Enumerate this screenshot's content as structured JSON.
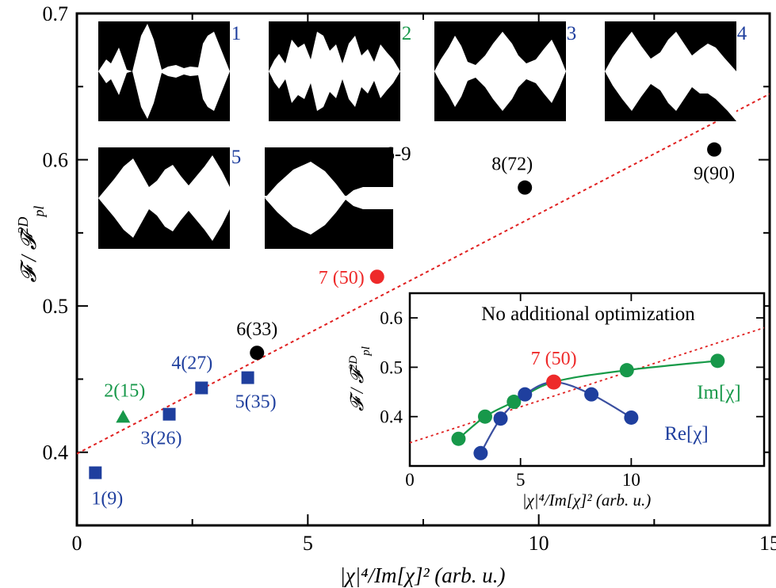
{
  "colors": {
    "blue": "#1f3f9e",
    "green": "#17984a",
    "red": "#ee2a2a",
    "black": "#000000",
    "fit": "#e02020",
    "inset_blue_line": "#3a4fa0",
    "inset_green_line": "#179a48"
  },
  "axes": {
    "xlabel": "|χ|⁴/Im[χ]² (arb. u.)",
    "ylabel": "F / F_pl^2D",
    "xticks": [
      "0",
      "5",
      "10",
      "15"
    ],
    "yticks": [
      "0.4",
      "0.5",
      "0.6",
      "0.7"
    ]
  },
  "chart_data": [
    {
      "type": "scatter",
      "xlabel": "|χ|⁴/Im[χ]² (arb. u.)",
      "ylabel": "F / F_pl^2D",
      "xlim": [
        0,
        15
      ],
      "ylim": [
        0.35,
        0.7
      ],
      "points": [
        {
          "label": "1(9)",
          "x": 0.4,
          "y": 0.386,
          "marker": "square",
          "color": "blue"
        },
        {
          "label": "2(15)",
          "x": 1.0,
          "y": 0.424,
          "marker": "triangle",
          "color": "green"
        },
        {
          "label": "3(26)",
          "x": 2.0,
          "y": 0.426,
          "marker": "square",
          "color": "blue"
        },
        {
          "label": "4(27)",
          "x": 2.7,
          "y": 0.444,
          "marker": "square",
          "color": "blue"
        },
        {
          "label": "5(35)",
          "x": 3.7,
          "y": 0.451,
          "marker": "square",
          "color": "blue"
        },
        {
          "label": "6(33)",
          "x": 3.9,
          "y": 0.468,
          "marker": "circle",
          "color": "black"
        },
        {
          "label": "7 (50)",
          "x": 6.5,
          "y": 0.52,
          "marker": "circle",
          "color": "red"
        },
        {
          "label": "8(72)",
          "x": 9.7,
          "y": 0.581,
          "marker": "circle",
          "color": "black"
        },
        {
          "label": "9(90)",
          "x": 13.8,
          "y": 0.607,
          "marker": "circle",
          "color": "black"
        }
      ],
      "fit_line": {
        "style": "dotted",
        "x": [
          0,
          15
        ],
        "y": [
          0.399,
          0.645
        ]
      },
      "panels": [
        {
          "label": "1",
          "color": "blue"
        },
        {
          "label": "2",
          "color": "green"
        },
        {
          "label": "3",
          "color": "blue"
        },
        {
          "label": "4",
          "color": "blue"
        },
        {
          "label": "5",
          "color": "blue"
        },
        {
          "label": "6-9",
          "color": "black"
        }
      ]
    },
    {
      "type": "line",
      "title": "No additional optimization",
      "xlabel": "|χ|⁴/Im[χ]² (arb. u.)",
      "ylabel": "F / F_pl^2D",
      "xlim": [
        0,
        16
      ],
      "ylim": [
        0.3,
        0.65
      ],
      "xticks": [
        "0",
        "5",
        "10"
      ],
      "yticks": [
        "0.4",
        "0.5",
        "0.6"
      ],
      "series": [
        {
          "name": "Im[χ]",
          "color": "green",
          "x": [
            2.2,
            3.4,
            4.7,
            6.5,
            9.8,
            13.9
          ],
          "y": [
            0.355,
            0.4,
            0.43,
            0.47,
            0.494,
            0.513
          ]
        },
        {
          "name": "Re[χ]",
          "color": "blue",
          "x": [
            3.2,
            4.1,
            5.2,
            6.5,
            8.2,
            10.0
          ],
          "y": [
            0.326,
            0.396,
            0.445,
            0.47,
            0.445,
            0.398
          ]
        }
      ],
      "highlight": {
        "label": "7 (50)",
        "x": 6.5,
        "y": 0.47,
        "color": "red"
      },
      "fit_line": {
        "style": "dotted",
        "x": [
          0,
          16
        ],
        "y": [
          0.347,
          0.58
        ]
      }
    }
  ]
}
